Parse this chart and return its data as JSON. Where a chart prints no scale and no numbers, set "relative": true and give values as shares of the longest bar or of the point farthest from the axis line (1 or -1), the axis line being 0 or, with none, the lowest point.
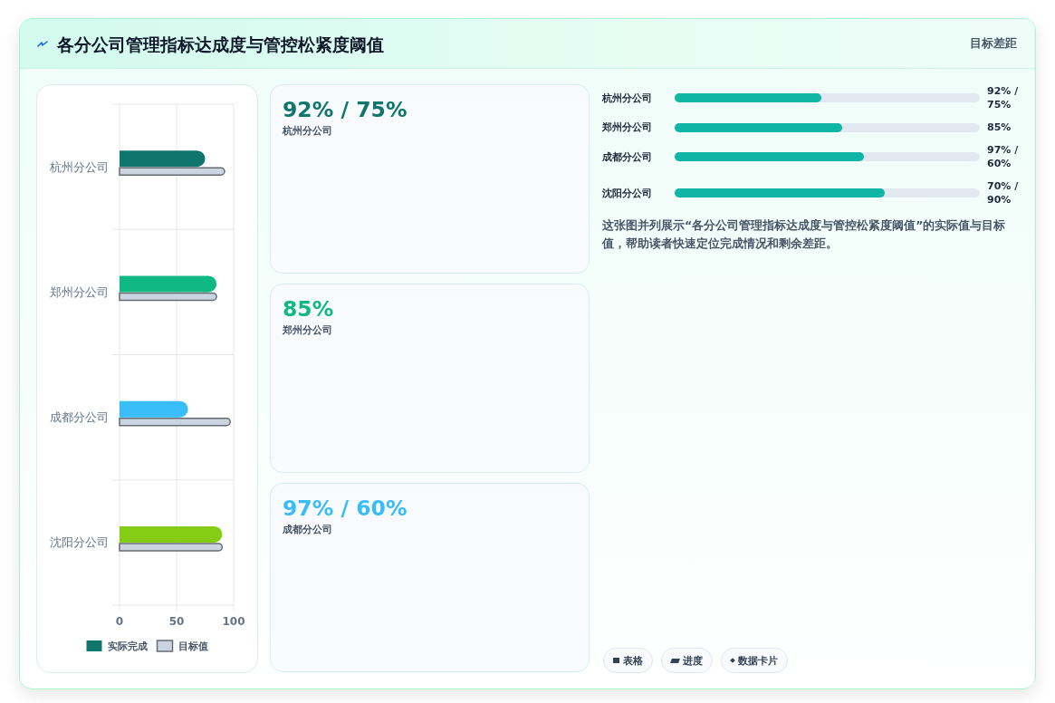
{
  "chart_data": [
    {
      "type": "bar",
      "title": "各分公司管理指标达成度与管控松紧度阈值",
      "annotations": [
        "目标差距"
      ],
      "orientation": "horizontal",
      "categories": [
        "杭州分公司",
        "郑州分公司",
        "成都分公司",
        "沈阳分公司"
      ],
      "series": [
        {
          "name": "实际完成",
          "color": "#0f766e",
          "colors": [
            "#0f766e",
            "#10b981",
            "#38bdf8",
            "#84cc16"
          ],
          "values": [
            75,
            85,
            60,
            90
          ]
        },
        {
          "name": "目标值",
          "color": "#cbd5e1",
          "values": [
            92,
            85,
            97,
            90
          ]
        }
      ],
      "xlim": [
        0,
        100
      ],
      "xticks": [
        0,
        50,
        100
      ],
      "grid": true,
      "legend": "bottom"
    },
    {
      "type": "other",
      "title": "92% / 75%",
      "subtitle": "杭州分公司",
      "color": "#0f766e"
    },
    {
      "type": "other",
      "title": "85%",
      "subtitle": "郑州分公司",
      "color": "#10b981"
    },
    {
      "type": "other",
      "title": "97% / 60%",
      "subtitle": "成都分公司",
      "color": "#38bdf8"
    },
    {
      "type": "bar",
      "orientation": "horizontal",
      "relative": true,
      "categories": [
        "杭州分公司",
        "郑州分公司",
        "成都分公司",
        "沈阳分公司"
      ],
      "values": [
        0.7,
        0.8,
        0.9,
        1
      ],
      "color": "#0fb5a5",
      "annotations": [
        "92% / 75%",
        "85%",
        "97% / 60%",
        "70% / 90%",
        "这张图并列展示“各分公司管理指标达成度与管控松紧度阈值”的实际值与目标值，帮助读者快速定位完成情况和剩余差距。",
        "表格",
        "进度",
        "数据卡片"
      ]
    }
  ]
}
